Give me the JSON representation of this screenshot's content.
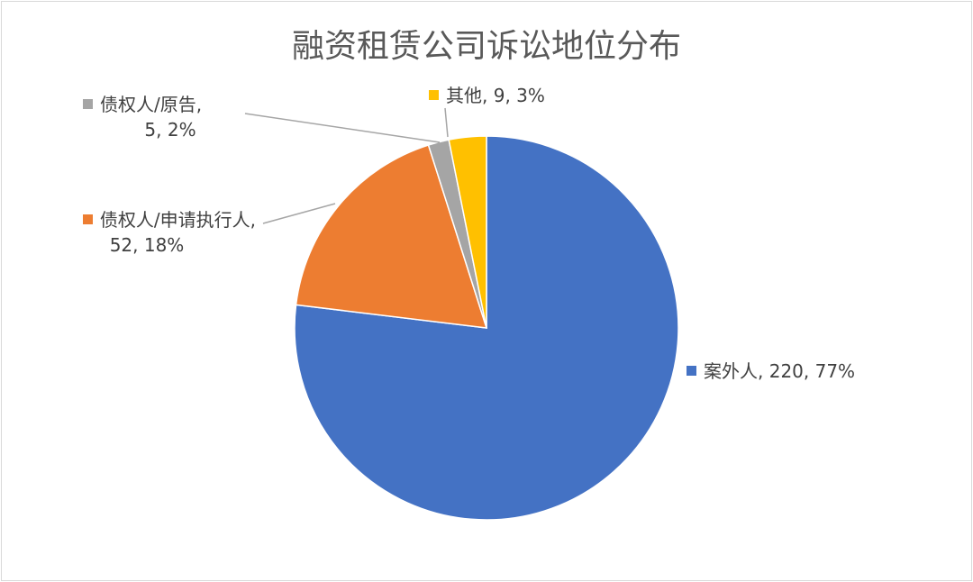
{
  "chart_data": {
    "type": "pie",
    "title": "融资租赁公司诉讼地位分布",
    "slices": [
      {
        "label": "案外人",
        "value": 220,
        "percent": "77%",
        "color": "#4472C4"
      },
      {
        "label": "债权人/申请执行人",
        "value": 52,
        "percent": "18%",
        "color": "#ED7D31"
      },
      {
        "label": "债权人/原告",
        "value": 5,
        "percent": "2%",
        "color": "#A5A5A5"
      },
      {
        "label": "其他",
        "value": 9,
        "percent": "3%",
        "color": "#FFC000"
      }
    ],
    "start_angle": "12 o'clock",
    "direction": "clockwise",
    "data_labels": "category, value, percent"
  },
  "labels": {
    "s0_line1": "案外人, 220, 77%",
    "s1_line1": "债权人/申请执行人,",
    "s1_line2": "52, 18%",
    "s2_line1": "债权人/原告,",
    "s2_line2": "5, 2%",
    "s3_line1": "其他, 9, 3%"
  }
}
